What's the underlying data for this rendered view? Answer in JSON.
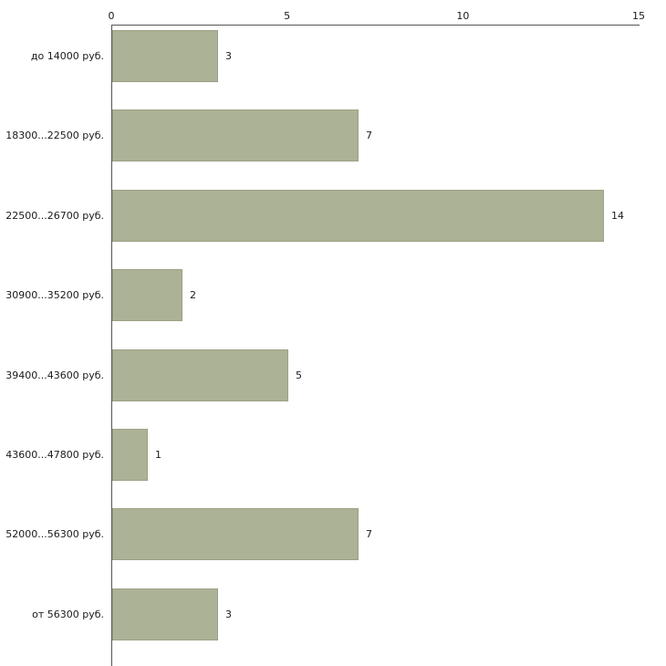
{
  "chart_data": {
    "type": "bar",
    "orientation": "horizontal",
    "title": "",
    "xlabel": "",
    "ylabel": "",
    "categories": [
      "до 14000 руб.",
      "18300...22500 руб.",
      "22500...26700 руб.",
      "30900...35200 руб.",
      "39400...43600 руб.",
      "43600...47800 руб.",
      "52000...56300 руб.",
      "от 56300 руб."
    ],
    "values": [
      3,
      7,
      14,
      2,
      5,
      1,
      7,
      3
    ],
    "value_labels": [
      "3",
      "7",
      "14",
      "2",
      "5",
      "1",
      "7",
      "3"
    ],
    "xlim": [
      0,
      15
    ],
    "xticks": [
      0,
      5,
      10,
      15
    ],
    "xtick_labels": [
      "0",
      "5",
      "10",
      "15"
    ],
    "legend": null,
    "grid": "off",
    "axis_position": "top-left",
    "colors": {
      "bar_fill": "#acb295",
      "bar_border": "#9ba285",
      "axis_line": "#545454",
      "text": "#1a1a1a",
      "background": "#ffffff"
    }
  },
  "layout_hints": {
    "bar_count": 8,
    "max_value_tick": 15
  }
}
